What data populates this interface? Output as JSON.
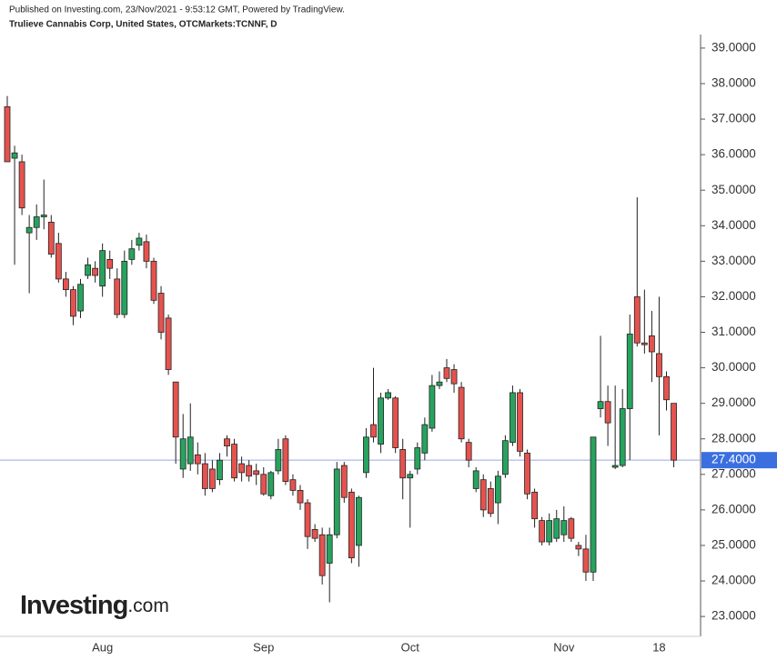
{
  "chart_data": {
    "type": "candlestick",
    "header": "Published on Investing.com, 23/Nov/2021 - 9:53:12 GMT, Powered by TradingView.",
    "title": "Trulieve Cannabis Corp, United States, OTCMarkets:TCNNF, D",
    "logo": "Investing",
    "logo_suffix": ".com",
    "up_color": "#27a35e",
    "down_color": "#e5534f",
    "price_line_color": "#9aa8e8",
    "categories": [
      null,
      null,
      null,
      null,
      null,
      null,
      null,
      null,
      null,
      null,
      null,
      null,
      null,
      "Aug",
      null,
      null,
      null,
      null,
      null,
      null,
      null,
      null,
      null,
      null,
      null,
      null,
      null,
      null,
      null,
      null,
      null,
      null,
      null,
      null,
      null,
      "Sep",
      null,
      null,
      null,
      null,
      null,
      null,
      null,
      null,
      null,
      null,
      null,
      null,
      null,
      null,
      null,
      null,
      null,
      null,
      null,
      "Oct",
      null,
      null,
      null,
      null,
      null,
      null,
      null,
      null,
      null,
      null,
      null,
      null,
      null,
      null,
      null,
      null,
      null,
      null,
      null,
      null,
      "Nov",
      null,
      null,
      null,
      null,
      null,
      null,
      null,
      null,
      null,
      null,
      null,
      null,
      "18",
      null,
      null
    ],
    "open": [
      37.35,
      35.9,
      35.8,
      33.8,
      33.95,
      34.25,
      34.1,
      33.5,
      32.5,
      32.2,
      31.6,
      32.6,
      32.8,
      32.3,
      33.05,
      32.5,
      31.5,
      33.05,
      33.45,
      33.55,
      33.0,
      32.1,
      31.4,
      29.6,
      27.15,
      27.3,
      27.55,
      27.3,
      27.15,
      26.85,
      28.0,
      27.85,
      27.3,
      27.25,
      27.1,
      27.0,
      26.4,
      27.1,
      28.0,
      26.85,
      26.55,
      26.2,
      25.45,
      25.3,
      24.5,
      25.3,
      27.25,
      26.5,
      25.0,
      27.05,
      28.4,
      27.85,
      29.15,
      29.15,
      27.7,
      26.9,
      27.15,
      27.6,
      28.3,
      29.5,
      30.0,
      29.95,
      29.45,
      27.9,
      26.6,
      26.85,
      26.6,
      26.2,
      27.0,
      27.9,
      29.3,
      27.6,
      26.5,
      25.7,
      25.1,
      25.2,
      25.3,
      25.75,
      25.0,
      24.9,
      24.25,
      28.85,
      29.05,
      27.2,
      27.25,
      28.85,
      32.0,
      30.7,
      30.9,
      30.4,
      29.75,
      29.0
    ],
    "high": [
      37.65,
      36.25,
      36.0,
      34.3,
      34.6,
      35.3,
      34.3,
      33.8,
      32.7,
      32.3,
      32.5,
      33.1,
      33.0,
      33.5,
      33.3,
      32.8,
      33.3,
      33.6,
      33.8,
      33.75,
      33.1,
      32.3,
      31.5,
      29.6,
      28.7,
      29.0,
      27.9,
      27.6,
      27.4,
      27.6,
      28.1,
      28.0,
      27.5,
      27.4,
      27.3,
      27.2,
      27.1,
      28.0,
      28.1,
      27.0,
      26.7,
      26.3,
      25.6,
      25.5,
      25.5,
      27.35,
      27.35,
      26.6,
      26.4,
      28.3,
      30.0,
      29.3,
      29.4,
      29.2,
      28.0,
      27.1,
      27.9,
      28.6,
      29.8,
      29.9,
      30.25,
      30.1,
      29.6,
      28.0,
      27.2,
      27.0,
      26.8,
      27.1,
      28.1,
      29.5,
      29.4,
      27.7,
      26.6,
      25.8,
      25.9,
      26.0,
      26.1,
      25.8,
      25.1,
      25.3,
      28.05,
      30.9,
      29.5,
      29.5,
      29.4,
      31.5,
      34.8,
      32.2,
      31.6,
      32.0,
      29.9,
      29.0
    ],
    "low": [
      35.8,
      32.9,
      34.3,
      32.1,
      33.6,
      33.9,
      33.1,
      32.4,
      32.0,
      31.2,
      31.4,
      32.5,
      32.4,
      32.0,
      32.5,
      31.4,
      31.4,
      32.9,
      33.3,
      32.8,
      31.8,
      30.8,
      29.8,
      27.3,
      26.9,
      27.1,
      27.0,
      26.4,
      26.5,
      26.7,
      27.5,
      26.8,
      26.8,
      26.8,
      26.7,
      26.4,
      26.3,
      27.0,
      26.7,
      26.4,
      26.0,
      24.9,
      25.1,
      23.9,
      23.4,
      25.2,
      26.2,
      24.5,
      24.4,
      26.9,
      27.9,
      27.6,
      29.1,
      27.6,
      26.3,
      25.5,
      27.0,
      27.4,
      28.2,
      29.4,
      29.6,
      29.3,
      27.9,
      27.2,
      26.5,
      25.8,
      25.8,
      25.6,
      26.9,
      27.8,
      27.5,
      26.3,
      25.5,
      25.0,
      25.0,
      25.1,
      25.1,
      25.1,
      24.7,
      24.0,
      24.0,
      28.6,
      27.8,
      27.15,
      27.2,
      27.4,
      30.6,
      30.4,
      29.6,
      28.1,
      28.8,
      27.2
    ],
    "close": [
      35.8,
      36.05,
      34.5,
      33.95,
      34.25,
      34.3,
      33.2,
      32.5,
      32.2,
      31.45,
      32.35,
      32.9,
      32.6,
      33.3,
      32.8,
      31.5,
      33.0,
      33.35,
      33.65,
      33.0,
      31.9,
      31.0,
      29.95,
      28.05,
      28.0,
      28.05,
      27.3,
      26.6,
      26.6,
      27.4,
      27.8,
      26.9,
      27.05,
      26.95,
      27.0,
      26.45,
      27.05,
      27.7,
      26.8,
      26.55,
      26.2,
      25.25,
      25.2,
      24.15,
      25.3,
      27.15,
      26.35,
      24.65,
      26.35,
      28.05,
      28.05,
      29.15,
      29.3,
      27.75,
      26.9,
      27.0,
      27.75,
      28.4,
      29.5,
      29.6,
      29.7,
      29.55,
      28.0,
      27.4,
      27.1,
      26.0,
      25.9,
      26.95,
      27.95,
      29.3,
      27.65,
      26.45,
      25.75,
      25.1,
      25.7,
      25.75,
      25.7,
      25.2,
      24.9,
      24.25,
      28.05,
      29.05,
      28.45,
      27.25,
      28.85,
      30.95,
      30.7,
      30.65,
      30.45,
      29.75,
      29.1,
      27.4
    ],
    "last_price": {
      "value": 27.4,
      "label": "27.4000"
    },
    "ylim": [
      22.44,
      39.33
    ],
    "yticks": [
      {
        "value": 23,
        "label": "23.0000"
      },
      {
        "value": 24,
        "label": "24.0000"
      },
      {
        "value": 25,
        "label": "25.0000"
      },
      {
        "value": 26,
        "label": "26.0000"
      },
      {
        "value": 27,
        "label": "27.0000"
      },
      {
        "value": 28,
        "label": "28.0000"
      },
      {
        "value": 29,
        "label": "29.0000"
      },
      {
        "value": 30,
        "label": "30.0000"
      },
      {
        "value": 31,
        "label": "31.0000"
      },
      {
        "value": 32,
        "label": "32.0000"
      },
      {
        "value": 33,
        "label": "33.0000"
      },
      {
        "value": 34,
        "label": "34.0000"
      },
      {
        "value": 35,
        "label": "35.0000"
      },
      {
        "value": 36,
        "label": "36.0000"
      },
      {
        "value": 37,
        "label": "37.0000"
      },
      {
        "value": 38,
        "label": "38.0000"
      },
      {
        "value": 39,
        "label": "39.0000"
      }
    ]
  }
}
